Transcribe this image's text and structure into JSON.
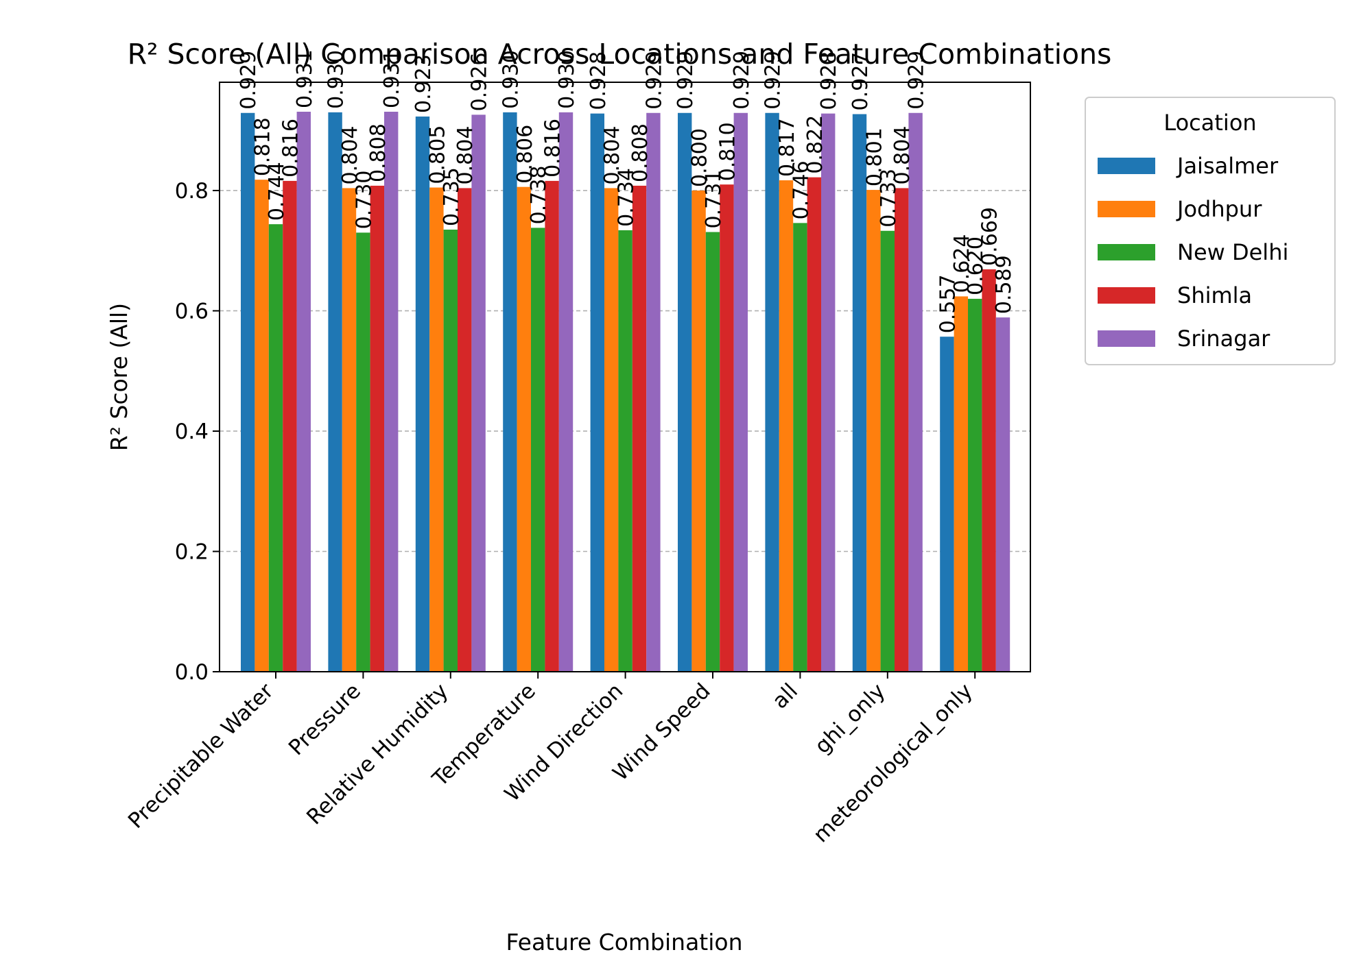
{
  "chart_data": {
    "type": "bar",
    "title": "R² Score (All) Comparison Across Locations and Feature Combinations",
    "xlabel": "Feature Combination",
    "ylabel": "R² Score (All)",
    "ylim": [
      0,
      0.98
    ],
    "yticks": [
      0.0,
      0.2,
      0.4,
      0.6,
      0.8
    ],
    "ytick_labels": [
      "0.0",
      "0.2",
      "0.4",
      "0.6",
      "0.8"
    ],
    "grid": "y-dashed",
    "categories": [
      "Precipitable Water",
      "Pressure",
      "Relative Humidity",
      "Temperature",
      "Wind Direction",
      "Wind Speed",
      "all",
      "ghi_only",
      "meteorological_only"
    ],
    "legend": {
      "title": "Location",
      "placement": "outside-right"
    },
    "series": [
      {
        "name": "Jaisalmer",
        "color": "#1f77b4",
        "values": [
          0.929,
          0.93,
          0.923,
          0.93,
          0.928,
          0.929,
          0.929,
          0.927,
          0.557
        ]
      },
      {
        "name": "Jodhpur",
        "color": "#ff7f0e",
        "values": [
          0.818,
          0.804,
          0.805,
          0.806,
          0.804,
          0.8,
          0.817,
          0.801,
          0.624
        ]
      },
      {
        "name": "New Delhi",
        "color": "#2ca02c",
        "values": [
          0.744,
          0.73,
          0.735,
          0.738,
          0.734,
          0.731,
          0.746,
          0.733,
          0.62
        ]
      },
      {
        "name": "Shimla",
        "color": "#d62728",
        "values": [
          0.816,
          0.808,
          0.804,
          0.816,
          0.808,
          0.81,
          0.822,
          0.804,
          0.669
        ]
      },
      {
        "name": "Srinagar",
        "color": "#9467bd",
        "values": [
          0.931,
          0.931,
          0.926,
          0.93,
          0.929,
          0.929,
          0.928,
          0.929,
          0.589
        ]
      }
    ],
    "value_labels": [
      [
        "0.929",
        "0.930",
        "0.923",
        "0.930",
        "0.928",
        "0.929",
        "0.929",
        "0.927",
        "0.557"
      ],
      [
        "0.818",
        "0.804",
        "0.805",
        "0.806",
        "0.804",
        "0.800",
        "0.817",
        "0.801",
        "0.624"
      ],
      [
        "0.744",
        "0.730",
        "0.735",
        "0.738",
        "0.734",
        "0.731",
        "0.746",
        "0.733",
        "0.620"
      ],
      [
        "0.816",
        "0.808",
        "0.804",
        "0.816",
        "0.808",
        "0.810",
        "0.822",
        "0.804",
        "0.669"
      ],
      [
        "0.931",
        "0.931",
        "0.926",
        "0.930",
        "0.929",
        "0.929",
        "0.928",
        "0.929",
        "0.589"
      ]
    ]
  }
}
